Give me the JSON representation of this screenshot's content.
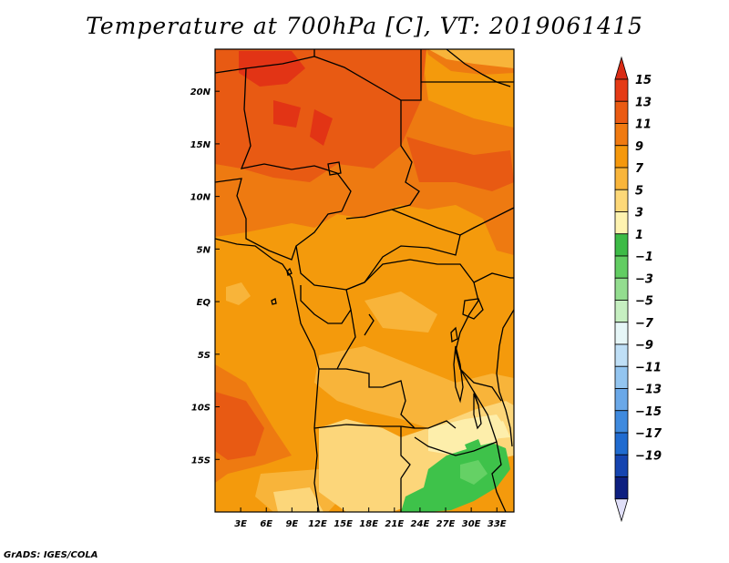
{
  "title": "Temperature at 700hPa [C], VT: 2019061415",
  "credit": "GrADS: IGES/COLA",
  "map": {
    "variable": "Temperature at 700hPa",
    "units": "C",
    "valid_time": "2019061415",
    "lon_range": [
      0,
      35
    ],
    "lat_range": [
      -20,
      24
    ],
    "x_ticks": [
      {
        "value": 3,
        "label": "3E"
      },
      {
        "value": 6,
        "label": "6E"
      },
      {
        "value": 9,
        "label": "9E"
      },
      {
        "value": 12,
        "label": "12E"
      },
      {
        "value": 15,
        "label": "15E"
      },
      {
        "value": 18,
        "label": "18E"
      },
      {
        "value": 21,
        "label": "21E"
      },
      {
        "value": 24,
        "label": "24E"
      },
      {
        "value": 27,
        "label": "27E"
      },
      {
        "value": 30,
        "label": "30E"
      },
      {
        "value": 33,
        "label": "33E"
      }
    ],
    "y_ticks": [
      {
        "value": 20,
        "label": "20N"
      },
      {
        "value": 15,
        "label": "15N"
      },
      {
        "value": 10,
        "label": "10N"
      },
      {
        "value": 5,
        "label": "5N"
      },
      {
        "value": 0,
        "label": "EQ"
      },
      {
        "value": -5,
        "label": "5S"
      },
      {
        "value": -10,
        "label": "10S"
      },
      {
        "value": -15,
        "label": "15S"
      }
    ]
  },
  "colorbar": {
    "labels": [
      "15",
      "13",
      "11",
      "9",
      "7",
      "5",
      "3",
      "1",
      "−1",
      "−3",
      "−5",
      "−7",
      "−9",
      "−11",
      "−13",
      "−15",
      "−17",
      "−19"
    ],
    "colors": [
      "#e53a15",
      "#ea5a12",
      "#f07a10",
      "#f5980c",
      "#f9b53a",
      "#fdd878",
      "#fef3b0",
      "#3dbb46",
      "#62cd62",
      "#93dd8f",
      "#c6efc1",
      "#e6f6f7",
      "#bfdff6",
      "#93c5f0",
      "#6aa8e8",
      "#3f8ade",
      "#206bd0",
      "#1544b0",
      "#0d1f80"
    ],
    "top_arrow_color": "#d92b15",
    "bottom_arrow_color": "#e0dff8"
  },
  "fill_colors": {
    "t15": "#e23415",
    "t13": "#e85a13",
    "t11": "#ee7a11",
    "t9": "#f49a0c",
    "t7": "#f8b43a",
    "t5": "#fcd67a",
    "t3": "#fdeeab",
    "t1": "#3ec24a",
    "tm1": "#65d165"
  }
}
